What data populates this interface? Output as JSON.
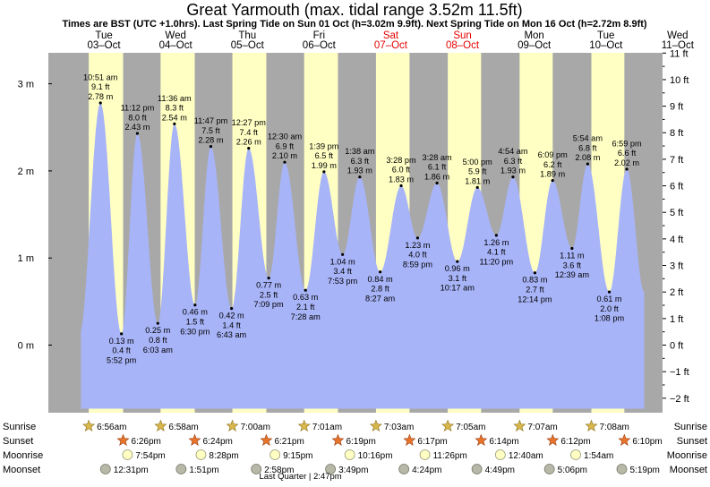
{
  "chart_data": {
    "type": "area",
    "title": "Great Yarmouth (max. tidal range 3.52m 11.5ft)",
    "subtitle": "Times are BST (UTC +1.0hrs). Last Spring Tide on Sun 01 Oct (h=3.02m 9.9ft). Next Spring Tide on Mon 16 Oct (h=2.72m 8.9ft)",
    "x_unit": "hours since Tue 03-Oct 00:00",
    "x_range": [
      -24,
      199
    ],
    "ylim": [
      -0.75,
      3.35
    ],
    "left_axis": {
      "unit": "m",
      "ticks": [
        0,
        1,
        2,
        3
      ],
      "tick_labels": [
        "0 m",
        "1 m",
        "2 m",
        "3 m"
      ]
    },
    "right_axis": {
      "unit": "ft",
      "ticks": [
        -2,
        -1,
        0,
        1,
        2,
        3,
        4,
        5,
        6,
        7,
        8,
        9,
        10,
        11
      ],
      "tick_labels": [
        "−2 ft",
        "−1 ft",
        "0 ft",
        "1 ft",
        "2 ft",
        "3 ft",
        "4 ft",
        "5 ft",
        "6 ft",
        "7 ft",
        "8 ft",
        "9 ft",
        "10 ft",
        "11 ft"
      ]
    },
    "days": [
      {
        "weekday": "Tue",
        "date": "03–Oct",
        "holiday": false
      },
      {
        "weekday": "Wed",
        "date": "04–Oct",
        "holiday": false
      },
      {
        "weekday": "Thu",
        "date": "05–Oct",
        "holiday": false
      },
      {
        "weekday": "Fri",
        "date": "06–Oct",
        "holiday": false
      },
      {
        "weekday": "Sat",
        "date": "07–Oct",
        "holiday": true
      },
      {
        "weekday": "Sun",
        "date": "08–Oct",
        "holiday": true
      },
      {
        "weekday": "Mon",
        "date": "09–Oct",
        "holiday": false
      },
      {
        "weekday": "Tue",
        "date": "10–Oct",
        "holiday": false
      },
      {
        "weekday": "Wed",
        "date": "11–Oct",
        "holiday": false
      }
    ],
    "tides": [
      {
        "t": 10.85,
        "h": 2.78,
        "type": "high",
        "time": "10:51 am",
        "m": "2.78 m",
        "ft": "9.1 ft"
      },
      {
        "t": 17.87,
        "h": 0.13,
        "type": "low",
        "time": "5:52 pm",
        "m": "0.13 m",
        "ft": "0.4 ft"
      },
      {
        "t": 23.2,
        "h": 2.43,
        "type": "high",
        "time": "11:12 pm",
        "m": "2.43 m",
        "ft": "8.0 ft"
      },
      {
        "t": 30.05,
        "h": 0.25,
        "type": "low",
        "time": "6:03 am",
        "m": "0.25 m",
        "ft": "0.8 ft"
      },
      {
        "t": 35.6,
        "h": 2.54,
        "type": "high",
        "time": "11:36 am",
        "m": "2.54 m",
        "ft": "8.3 ft"
      },
      {
        "t": 42.5,
        "h": 0.46,
        "type": "low",
        "time": "6:30 pm",
        "m": "0.46 m",
        "ft": "1.5 ft"
      },
      {
        "t": 47.78,
        "h": 2.28,
        "type": "high",
        "time": "11:47 pm",
        "m": "2.28 m",
        "ft": "7.5 ft"
      },
      {
        "t": 54.72,
        "h": 0.42,
        "type": "low",
        "time": "6:43 am",
        "m": "0.42 m",
        "ft": "1.4 ft"
      },
      {
        "t": 60.45,
        "h": 2.26,
        "type": "high",
        "time": "12:27 pm",
        "m": "2.26 m",
        "ft": "7.4 ft"
      },
      {
        "t": 67.15,
        "h": 0.77,
        "type": "low",
        "time": "7:09 pm",
        "m": "0.77 m",
        "ft": "2.5 ft"
      },
      {
        "t": 72.5,
        "h": 2.1,
        "type": "high",
        "time": "12:30 am",
        "m": "2.10 m",
        "ft": "6.9 ft"
      },
      {
        "t": 79.47,
        "h": 0.63,
        "type": "low",
        "time": "7:28 am",
        "m": "0.63 m",
        "ft": "2.1 ft"
      },
      {
        "t": 85.65,
        "h": 1.99,
        "type": "high",
        "time": "1:39 pm",
        "m": "1.99 m",
        "ft": "6.5 ft"
      },
      {
        "t": 91.88,
        "h": 1.04,
        "type": "low",
        "time": "7:53 pm",
        "m": "1.04 m",
        "ft": "3.4 ft"
      },
      {
        "t": 97.63,
        "h": 1.93,
        "type": "high",
        "time": "1:38 am",
        "m": "1.93 m",
        "ft": "6.3 ft"
      },
      {
        "t": 104.45,
        "h": 0.84,
        "type": "low",
        "time": "8:27 am",
        "m": "0.84 m",
        "ft": "2.8 ft"
      },
      {
        "t": 111.47,
        "h": 1.83,
        "type": "high",
        "time": "3:28 pm",
        "m": "1.83 m",
        "ft": "6.0 ft"
      },
      {
        "t": 116.98,
        "h": 1.23,
        "type": "low",
        "time": "8:59 pm",
        "m": "1.23 m",
        "ft": "4.0 ft"
      },
      {
        "t": 123.47,
        "h": 1.86,
        "type": "high",
        "time": "3:28 am",
        "m": "1.86 m",
        "ft": "6.1 ft"
      },
      {
        "t": 130.28,
        "h": 0.96,
        "type": "low",
        "time": "10:17 am",
        "m": "0.96 m",
        "ft": "3.1 ft"
      },
      {
        "t": 137.0,
        "h": 1.81,
        "type": "high",
        "time": "5:00 pm",
        "m": "1.81 m",
        "ft": "5.9 ft"
      },
      {
        "t": 143.33,
        "h": 1.26,
        "type": "low",
        "time": "11:20 pm",
        "m": "1.26 m",
        "ft": "4.1 ft"
      },
      {
        "t": 148.9,
        "h": 1.93,
        "type": "high",
        "time": "4:54 am",
        "m": "1.93 m",
        "ft": "6.3 ft"
      },
      {
        "t": 156.23,
        "h": 0.83,
        "type": "low",
        "time": "12:14 pm",
        "m": "0.83 m",
        "ft": "2.7 ft"
      },
      {
        "t": 162.15,
        "h": 1.89,
        "type": "high",
        "time": "6:09 pm",
        "m": "1.89 m",
        "ft": "6.2 ft"
      },
      {
        "t": 168.65,
        "h": 1.11,
        "type": "low",
        "time": "12:39 am",
        "m": "1.11 m",
        "ft": "3.6 ft"
      },
      {
        "t": 173.9,
        "h": 2.08,
        "type": "high",
        "time": "5:54 am",
        "m": "2.08 m",
        "ft": "6.8 ft"
      },
      {
        "t": 181.13,
        "h": 0.61,
        "type": "low",
        "time": "1:08 pm",
        "m": "0.61 m",
        "ft": "2.0 ft"
      },
      {
        "t": 186.98,
        "h": 2.02,
        "type": "high",
        "time": "6:59 pm",
        "m": "2.02 m",
        "ft": "6.6 ft"
      }
    ],
    "daylight_hours": [
      {
        "rise": 6.93,
        "set": 18.43
      },
      {
        "rise": 30.97,
        "set": 42.4
      },
      {
        "rise": 55.0,
        "set": 66.35
      },
      {
        "rise": 79.02,
        "set": 90.32
      },
      {
        "rise": 103.05,
        "set": 114.28
      },
      {
        "rise": 127.08,
        "set": 138.23
      },
      {
        "rise": 151.12,
        "set": 162.2
      },
      {
        "rise": 175.13,
        "set": 186.17
      },
      {
        "rise": 199.0,
        "set": 199.0
      }
    ],
    "row_labels": [
      "Sunrise",
      "Sunset",
      "Moonrise",
      "Moonset"
    ],
    "sunrise": [
      {
        "t": 6.93,
        "label": "6:56am"
      },
      {
        "t": 30.97,
        "label": "6:58am"
      },
      {
        "t": 55.0,
        "label": "7:00am"
      },
      {
        "t": 79.02,
        "label": "7:01am"
      },
      {
        "t": 103.05,
        "label": "7:03am"
      },
      {
        "t": 127.08,
        "label": "7:05am"
      },
      {
        "t": 151.12,
        "label": "7:07am"
      },
      {
        "t": 175.13,
        "label": "7:08am"
      }
    ],
    "sunset": [
      {
        "t": 18.43,
        "label": "6:26pm"
      },
      {
        "t": 42.4,
        "label": "6:24pm"
      },
      {
        "t": 66.35,
        "label": "6:21pm"
      },
      {
        "t": 90.32,
        "label": "6:19pm"
      },
      {
        "t": 114.28,
        "label": "6:17pm"
      },
      {
        "t": 138.23,
        "label": "6:14pm"
      },
      {
        "t": 162.2,
        "label": "6:12pm"
      },
      {
        "t": 186.17,
        "label": "6:10pm"
      }
    ],
    "moonrise": [
      {
        "t": 19.9,
        "label": "7:54pm"
      },
      {
        "t": 44.47,
        "label": "8:28pm"
      },
      {
        "t": 69.25,
        "label": "9:15pm"
      },
      {
        "t": 94.27,
        "label": "10:16pm"
      },
      {
        "t": 119.43,
        "label": "11:26pm"
      },
      {
        "t": 144.67,
        "label": "12:40am"
      },
      {
        "t": 169.9,
        "label": "1:54am"
      }
    ],
    "moonset": [
      {
        "t": 12.52,
        "label": "12:31pm"
      },
      {
        "t": 37.85,
        "label": "1:51pm"
      },
      {
        "t": 62.97,
        "label": "2:58pm"
      },
      {
        "t": 87.82,
        "label": "3:49pm"
      },
      {
        "t": 112.4,
        "label": "4:24pm"
      },
      {
        "t": 136.82,
        "label": "4:49pm"
      },
      {
        "t": 161.1,
        "label": "5:06pm"
      },
      {
        "t": 185.32,
        "label": "5:19pm"
      }
    ],
    "moon_phase": {
      "t": 62.8,
      "label": "Last Quarter | 2:47pm"
    },
    "colors": {
      "night": "#a8a8a8",
      "day": "#ffffc4",
      "water": "#a8b4f8",
      "holiday": "#e60000",
      "sun_star": "#d8b84a",
      "sunset_star": "#e8742a",
      "moon_full": "#ffffc4",
      "moon_dim": "#b8b8a8"
    }
  }
}
